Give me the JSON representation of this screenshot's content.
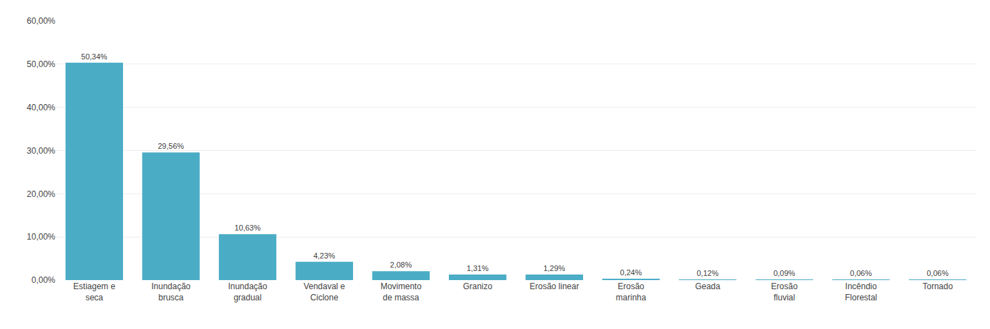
{
  "chart_data": {
    "type": "bar",
    "categories": [
      "Estiagem e\nseca",
      "Inundação\nbrusca",
      "Inundação\ngradual",
      "Vendaval e\nCiclone",
      "Movimento\nde massa",
      "Granizo",
      "Erosão linear",
      "Erosão\nmarinha",
      "Geada",
      "Erosão\nfluvial",
      "Incêndio\nFlorestal",
      "Tornado"
    ],
    "values": [
      50.34,
      29.56,
      10.63,
      4.23,
      2.08,
      1.31,
      1.29,
      0.24,
      0.12,
      0.09,
      0.06,
      0.06
    ],
    "value_labels": [
      "50,34%",
      "29,56%",
      "10,63%",
      "4,23%",
      "2,08%",
      "1,31%",
      "1,29%",
      "0,24%",
      "0,12%",
      "0,09%",
      "0,06%",
      "0,06%"
    ],
    "data_labels": true,
    "color": "#4bacc6",
    "ylim": [
      0,
      60
    ],
    "yticks": [
      {
        "value": 0,
        "label": "0,00%"
      },
      {
        "value": 10,
        "label": "10,00%"
      },
      {
        "value": 20,
        "label": "20,00%"
      },
      {
        "value": 30,
        "label": "30,00%"
      },
      {
        "value": 40,
        "label": "40,00%"
      },
      {
        "value": 50,
        "label": "50,00%"
      },
      {
        "value": 60,
        "label": "60,00%"
      }
    ],
    "grid": true
  }
}
